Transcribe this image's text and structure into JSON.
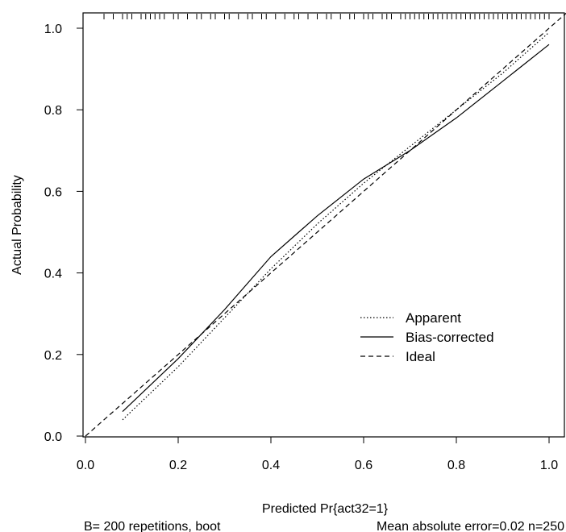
{
  "chart_data": {
    "type": "line",
    "title": "",
    "xlabel": "Predicted Pr{act32=1}",
    "ylabel": "Actual Probability",
    "xlim": [
      0,
      1.04
    ],
    "ylim": [
      0,
      1.04
    ],
    "xticks": [
      "0.0",
      "0.2",
      "0.4",
      "0.6",
      "0.8",
      "1.0"
    ],
    "yticks": [
      "0.0",
      "0.2",
      "0.4",
      "0.6",
      "0.8",
      "1.0"
    ],
    "xtick_values": [
      0,
      0.2,
      0.4,
      0.6,
      0.8,
      1.0
    ],
    "ytick_values": [
      0,
      0.2,
      0.4,
      0.6,
      0.8,
      1.0
    ],
    "grid": false,
    "legend_position": "bottom-right",
    "series": [
      {
        "name": "Apparent",
        "style": "dotted",
        "x": [
          0.08,
          0.2,
          0.3,
          0.4,
          0.5,
          0.6,
          0.7,
          0.8,
          0.9,
          1.0
        ],
        "y": [
          0.04,
          0.17,
          0.29,
          0.41,
          0.52,
          0.62,
          0.71,
          0.8,
          0.89,
          0.99
        ]
      },
      {
        "name": "Bias-corrected",
        "style": "solid",
        "x": [
          0.08,
          0.2,
          0.3,
          0.4,
          0.46,
          0.5,
          0.6,
          0.7,
          0.8,
          0.9,
          1.0
        ],
        "y": [
          0.06,
          0.19,
          0.31,
          0.44,
          0.5,
          0.54,
          0.63,
          0.7,
          0.78,
          0.87,
          0.96
        ]
      },
      {
        "name": "Ideal",
        "style": "dashed",
        "x": [
          0.0,
          1.04
        ],
        "y": [
          0.0,
          1.04
        ]
      }
    ],
    "rug_x": [
      0.04,
      0.06,
      0.08,
      0.09,
      0.1,
      0.12,
      0.13,
      0.14,
      0.15,
      0.16,
      0.17,
      0.19,
      0.2,
      0.22,
      0.24,
      0.25,
      0.27,
      0.28,
      0.3,
      0.31,
      0.33,
      0.35,
      0.36,
      0.38,
      0.39,
      0.41,
      0.43,
      0.45,
      0.46,
      0.48,
      0.5,
      0.52,
      0.53,
      0.55,
      0.57,
      0.58,
      0.6,
      0.61,
      0.62,
      0.64,
      0.65,
      0.66,
      0.68,
      0.69,
      0.7,
      0.71,
      0.72,
      0.73,
      0.74,
      0.75,
      0.76,
      0.77,
      0.78,
      0.79,
      0.8,
      0.81,
      0.82,
      0.83,
      0.84,
      0.85,
      0.86,
      0.87,
      0.88,
      0.89,
      0.9,
      0.91,
      0.92,
      0.93,
      0.94,
      0.95,
      0.96,
      0.97,
      0.98,
      0.99,
      1.0
    ],
    "subtitle_left": "B= 200 repetitions, boot",
    "subtitle_right": "Mean absolute error=0.02 n=250"
  }
}
